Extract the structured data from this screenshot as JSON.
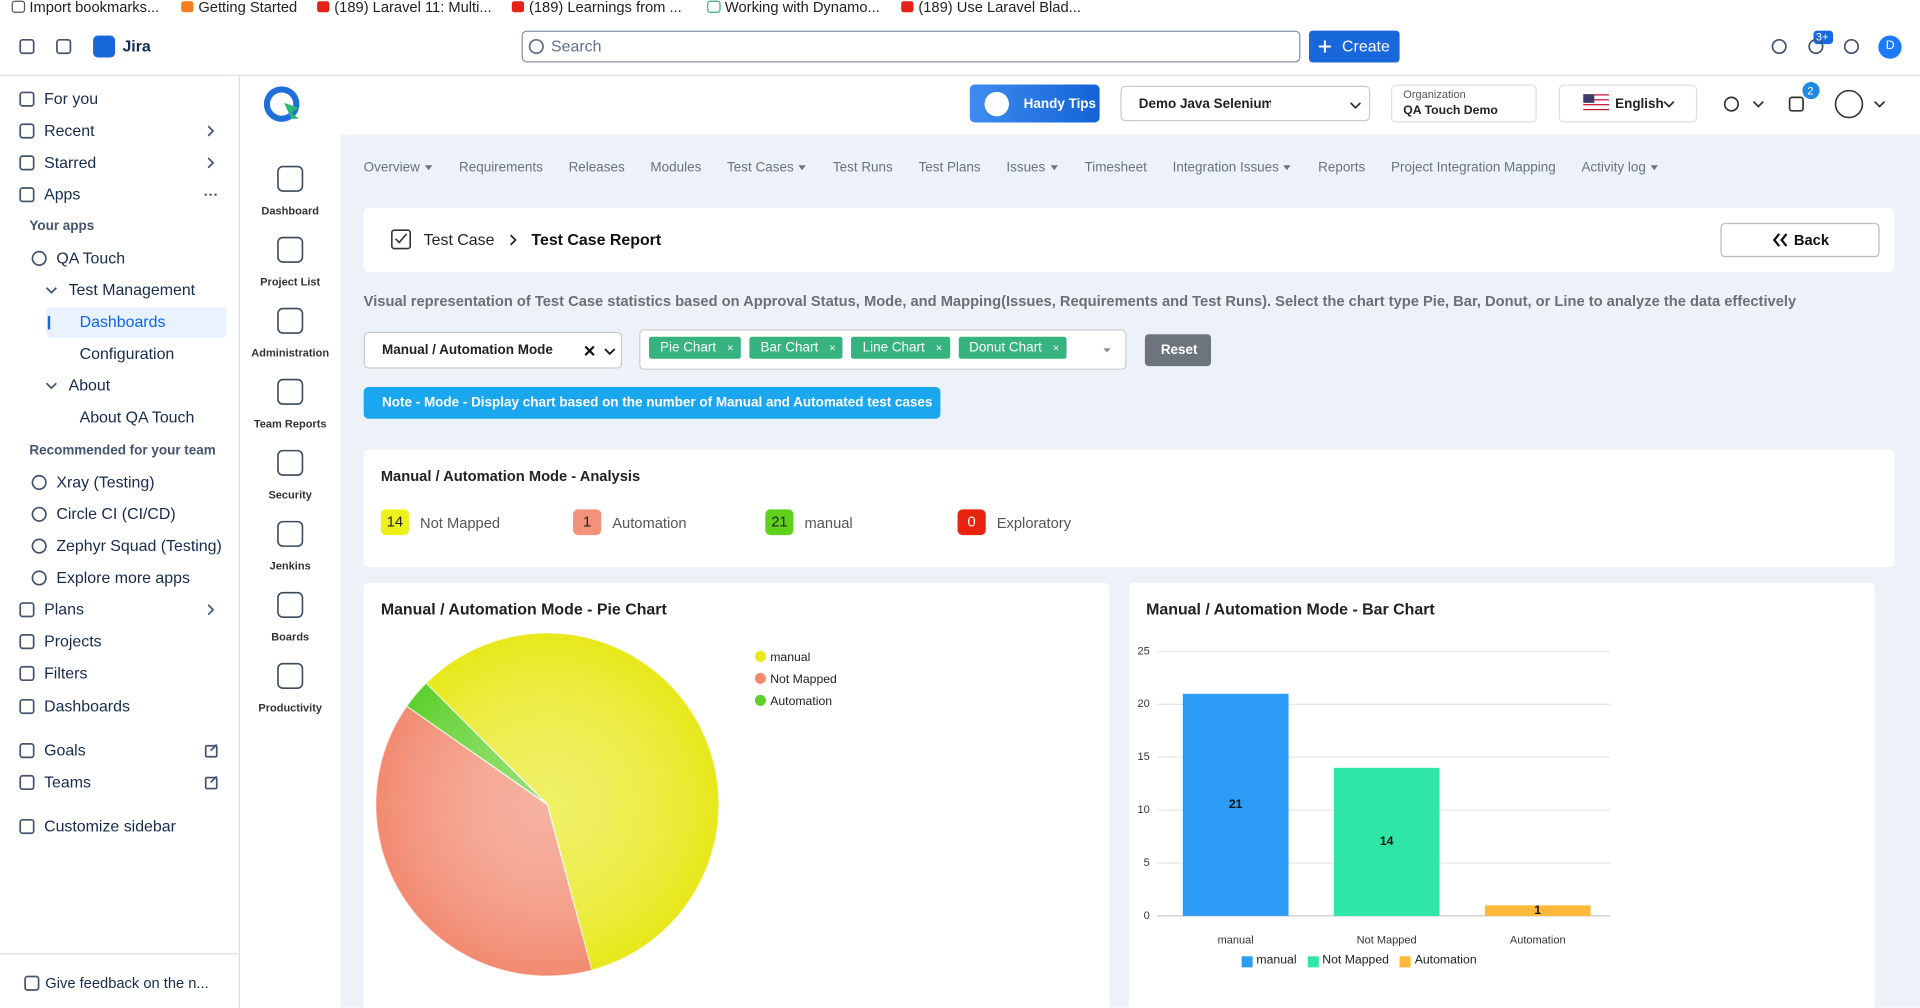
{
  "bookmarks": [
    "Import bookmarks...",
    "Getting Started",
    "(189) Laravel 11: Multi...",
    "(189) Learnings from ...",
    "Working with Dynamo...",
    "(189) Use Laravel Blad..."
  ],
  "topbar": {
    "product": "Jira",
    "search": "Search",
    "create": "Create",
    "help_badge": "3+",
    "avatar": "D"
  },
  "sidebar": {
    "nav": [
      "For you",
      "Recent",
      "Starred",
      "Apps"
    ],
    "your_apps_heading": "Your apps",
    "your_apps": [
      "QA Touch",
      "Test Management",
      "Dashboards",
      "Configuration",
      "About",
      "About QA Touch"
    ],
    "recommended_heading": "Recommended for your team",
    "recommended": [
      "Xray (Testing)",
      "Circle CI (CI/CD)",
      "Zephyr Squad (Testing)",
      "Explore more apps"
    ],
    "more": [
      "Plans",
      "Projects",
      "Filters",
      "Dashboards"
    ],
    "links": [
      "Goals",
      "Teams"
    ],
    "customize": "Customize sidebar",
    "feedback": "Give feedback on the n..."
  },
  "qa_nav": [
    "Dashboard",
    "Project List",
    "Administration",
    "Team Reports",
    "Security",
    "Jenkins",
    "Boards",
    "Productivity"
  ],
  "header": {
    "handy_tips": "Handy Tips",
    "project": "Demo Java Selenium BDI",
    "org_label": "Organization",
    "org": "QA Touch Demo",
    "language": "English",
    "notifications": "2"
  },
  "tabs": [
    {
      "label": "Overview",
      "dropdown": true
    },
    {
      "label": "Requirements",
      "dropdown": false
    },
    {
      "label": "Releases",
      "dropdown": false
    },
    {
      "label": "Modules",
      "dropdown": false
    },
    {
      "label": "Test Cases",
      "dropdown": true
    },
    {
      "label": "Test Runs",
      "dropdown": false
    },
    {
      "label": "Test Plans",
      "dropdown": false
    },
    {
      "label": "Issues",
      "dropdown": true
    },
    {
      "label": "Timesheet",
      "dropdown": false
    },
    {
      "label": "Integration Issues",
      "dropdown": true
    },
    {
      "label": "Reports",
      "dropdown": false
    },
    {
      "label": "Project Integration Mapping",
      "dropdown": false
    },
    {
      "label": "Activity log",
      "dropdown": true
    }
  ],
  "breadcrumb": {
    "parent": "Test Case",
    "current": "Test Case Report",
    "back": "Back"
  },
  "description": "Visual representation of Test Case statistics based on Approval Status, Mode, and Mapping(Issues, Requirements and Test Runs). Select the chart type Pie, Bar, Donut, or Line to analyze the data effectively",
  "filter": {
    "mode": "Manual / Automation Mode",
    "chart_types": [
      "Pie Chart",
      "Bar Chart",
      "Line Chart",
      "Donut Chart"
    ],
    "reset": "Reset"
  },
  "note": "Note - Mode - Display chart based on the number of Manual and Automated test cases",
  "analysis": {
    "title": "Manual / Automation Mode - Analysis",
    "items": [
      {
        "count": 14,
        "label": "Not Mapped",
        "color": "#eef01a"
      },
      {
        "count": 1,
        "label": "Automation",
        "color": "#f4917a"
      },
      {
        "count": 21,
        "label": "manual",
        "color": "#5fd01c"
      },
      {
        "count": 0,
        "label": "Exploratory",
        "color": "#e8230f"
      }
    ]
  },
  "pie_chart": {
    "type": "pie",
    "title": "Manual / Automation Mode - Pie Chart",
    "categories": [
      "manual",
      "Not Mapped",
      "Automation"
    ],
    "values": [
      21,
      14,
      1
    ],
    "colors": [
      "#e8e81a",
      "#f28a70",
      "#5ccf2a"
    ],
    "legend": "right"
  },
  "bar_chart": {
    "type": "bar",
    "title": "Manual / Automation Mode - Bar Chart",
    "categories": [
      "manual",
      "Not Mapped",
      "Automation"
    ],
    "values": [
      21,
      14,
      1
    ],
    "colors": [
      "#2c9cf6",
      "#2ee6a6",
      "#fdb93a"
    ],
    "ylim": [
      0,
      25
    ],
    "yticks": [
      0,
      5,
      10,
      15,
      20,
      25
    ],
    "grid": true,
    "legend": "bottom"
  }
}
